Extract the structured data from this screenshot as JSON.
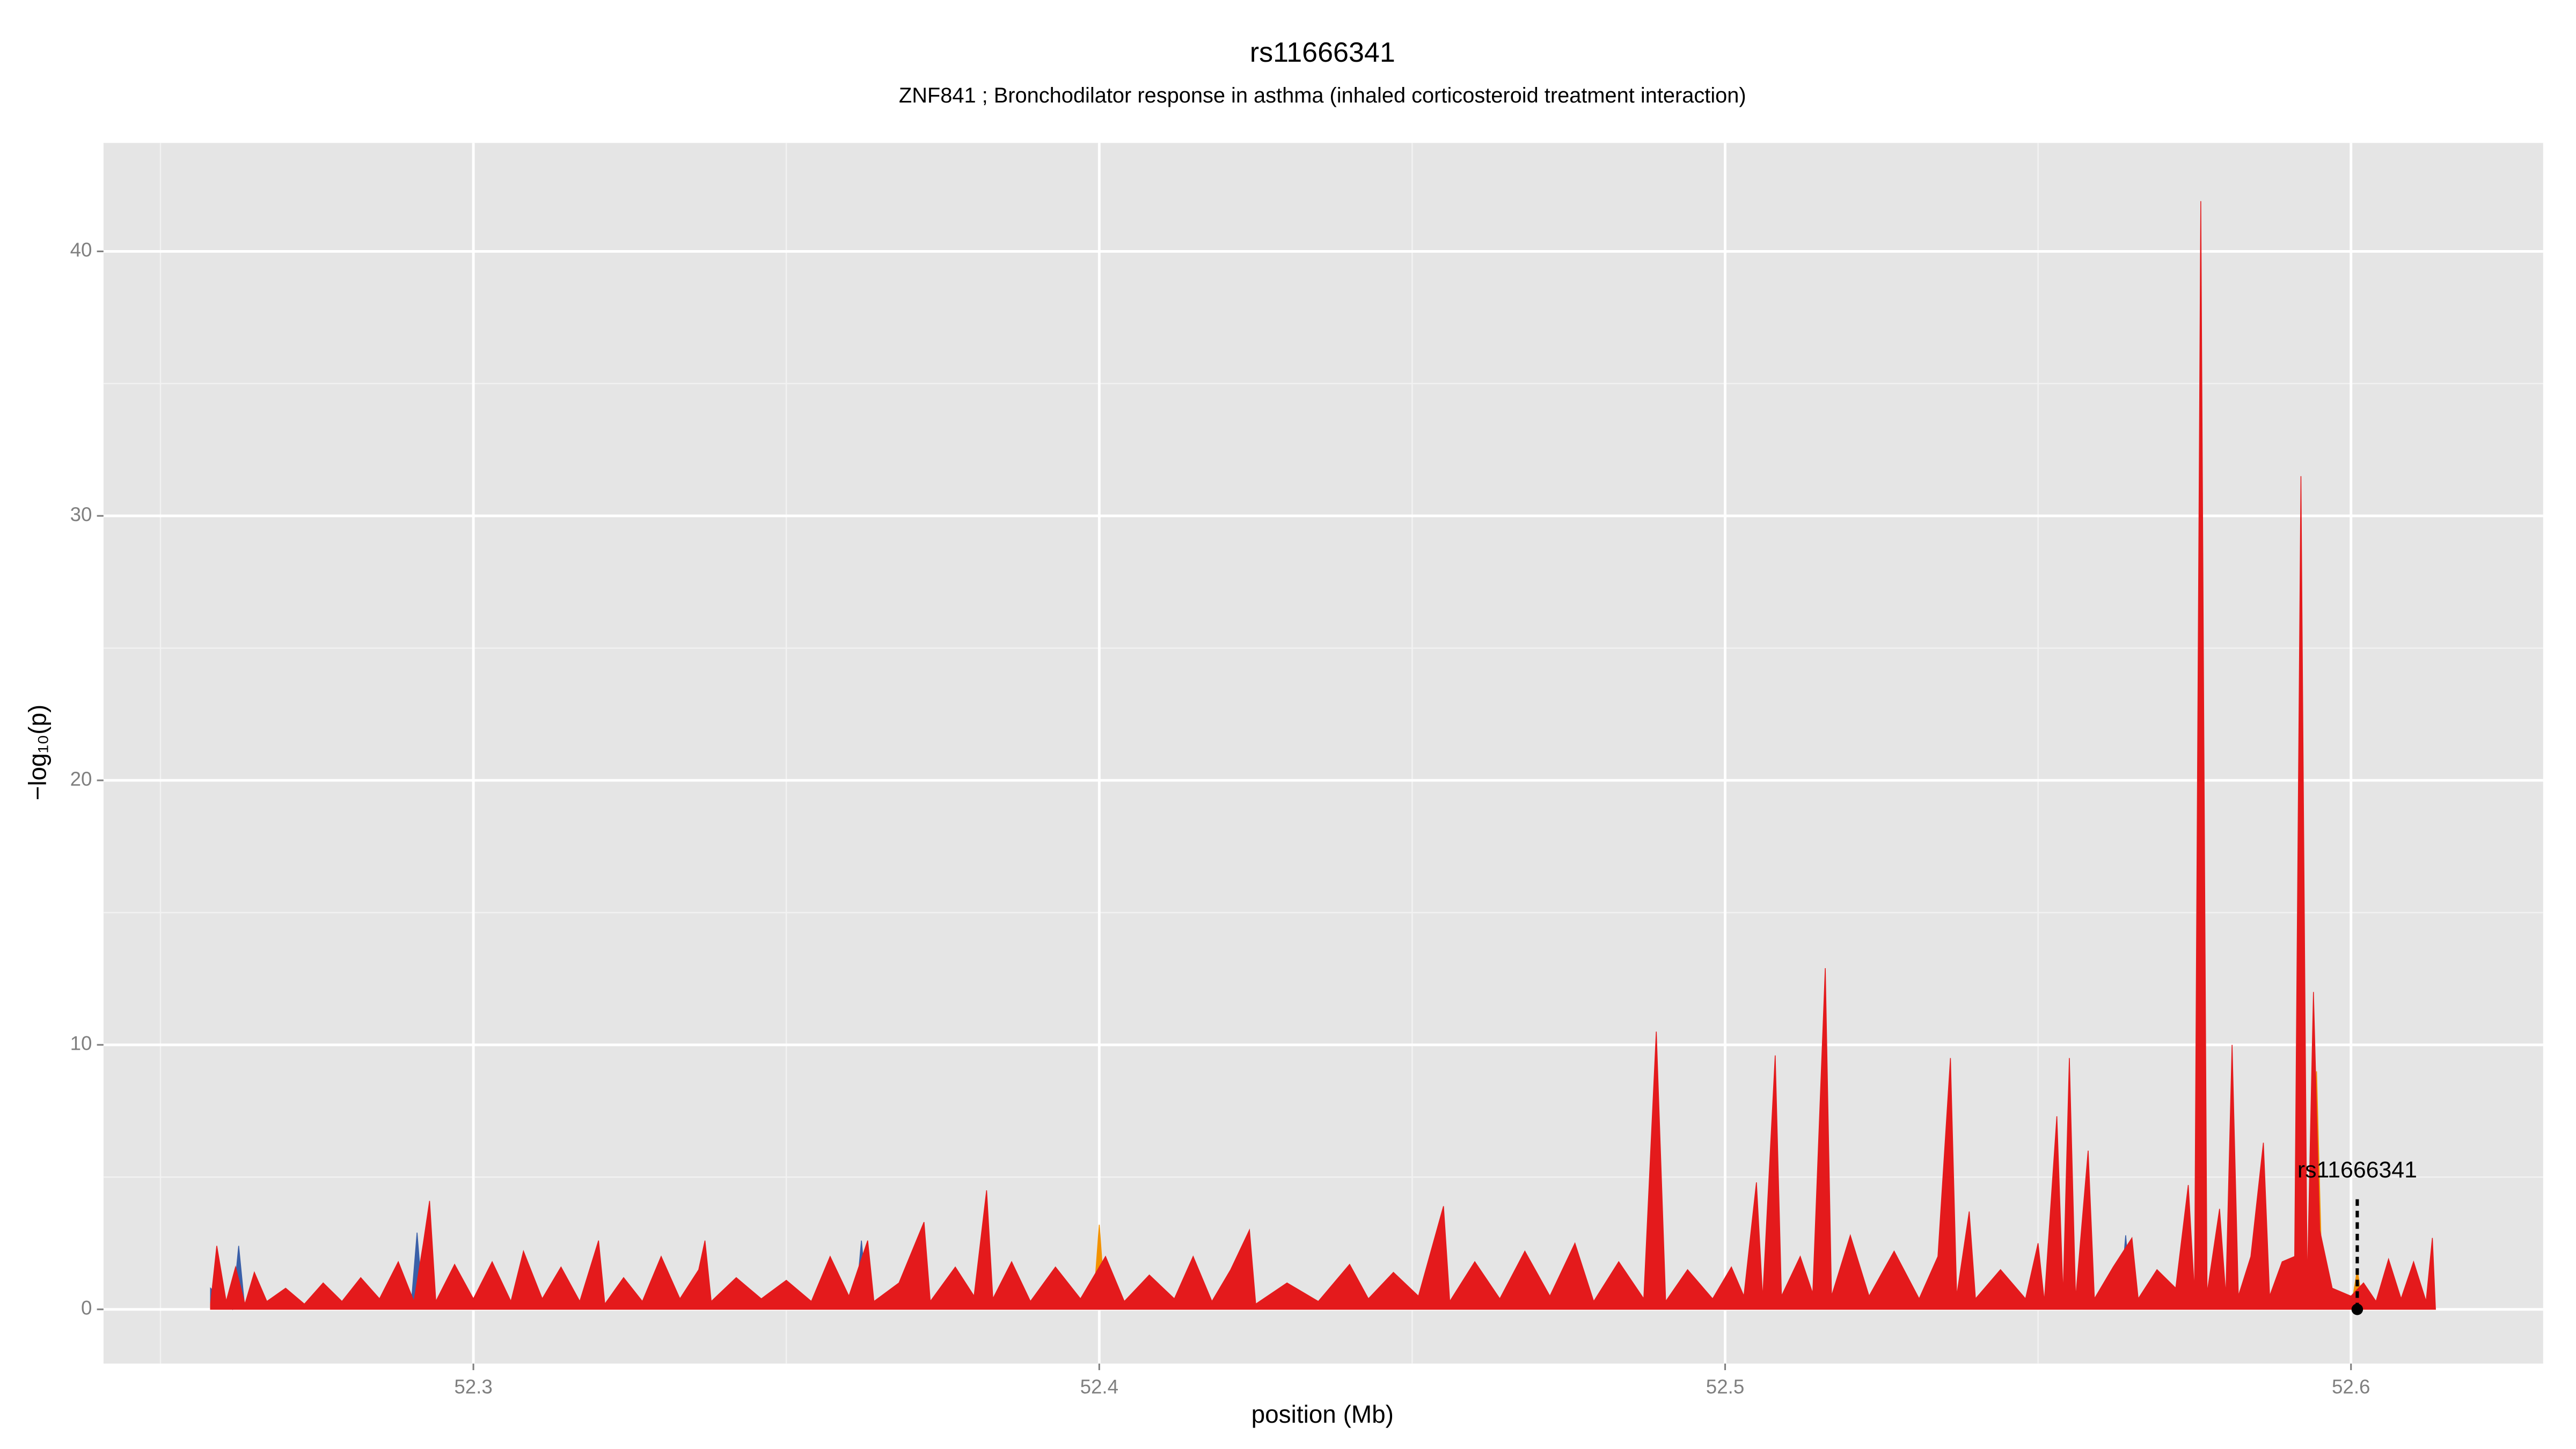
{
  "chart_data": {
    "type": "area",
    "title": "rs11666341",
    "subtitle": "ZNF841 ; Bronchodilator response in asthma (inhaled corticosteroid treatment interaction)",
    "x_label": "position (Mb)",
    "y_label": "−log₁₀(p)",
    "xlim": [
      52.2409,
      52.6307
    ],
    "xticks": [
      52.3,
      52.4,
      52.5,
      52.6
    ],
    "x_minor_ticks": [
      52.25,
      52.35,
      52.45,
      52.55
    ],
    "ylim": [
      -2.05,
      44.1
    ],
    "yticks": [
      0,
      10,
      20,
      30,
      40
    ],
    "y_minor_ticks": [
      5,
      15,
      25,
      35
    ],
    "grid": true,
    "background": "#e5e5e5",
    "series": [
      {
        "color": "#3a5fa8",
        "x": [
          52.258,
          52.2615,
          52.2625,
          52.2635,
          52.29,
          52.291,
          52.292,
          52.318,
          52.319,
          52.32,
          52.361,
          52.362,
          52.363,
          52.452,
          52.453,
          52.454,
          52.503,
          52.504,
          52.505,
          52.563,
          52.564,
          52.565,
          52.573,
          52.574,
          52.575
        ],
        "values": [
          0.8,
          0,
          2.4,
          0,
          0,
          2.9,
          0,
          0,
          1.3,
          0,
          0,
          2.6,
          0,
          0,
          1.6,
          0,
          0,
          1.2,
          0,
          0,
          2.8,
          0,
          0,
          2.0,
          0
        ]
      },
      {
        "color": "#f39200",
        "x": [
          52.381,
          52.382,
          52.383,
          52.399,
          52.4,
          52.401,
          52.5935,
          52.5945,
          52.5955,
          52.6,
          52.601,
          52.602
        ],
        "values": [
          0,
          3.5,
          0,
          0,
          3.2,
          0,
          0,
          9.0,
          0,
          0,
          1.5,
          0
        ]
      },
      {
        "color": "#e41a1c",
        "x": [
          52.258,
          52.259,
          52.2605,
          52.262,
          52.2635,
          52.265,
          52.267,
          52.27,
          52.273,
          52.276,
          52.279,
          52.282,
          52.285,
          52.288,
          52.2905,
          52.292,
          52.293,
          52.294,
          52.297,
          52.3,
          52.303,
          52.306,
          52.308,
          52.311,
          52.314,
          52.317,
          52.32,
          52.321,
          52.324,
          52.327,
          52.33,
          52.333,
          52.336,
          52.337,
          52.338,
          52.342,
          52.346,
          52.35,
          52.354,
          52.357,
          52.36,
          52.363,
          52.364,
          52.368,
          52.372,
          52.373,
          52.377,
          52.38,
          52.382,
          52.383,
          52.386,
          52.389,
          52.393,
          52.397,
          52.401,
          52.404,
          52.408,
          52.412,
          52.415,
          52.418,
          52.421,
          52.424,
          52.425,
          52.43,
          52.435,
          52.44,
          52.443,
          52.447,
          52.451,
          52.455,
          52.456,
          52.46,
          52.464,
          52.468,
          52.472,
          52.476,
          52.479,
          52.483,
          52.487,
          52.489,
          52.4905,
          52.494,
          52.498,
          52.501,
          52.503,
          52.505,
          52.506,
          52.508,
          52.509,
          52.512,
          52.514,
          52.516,
          52.517,
          52.52,
          52.523,
          52.527,
          52.531,
          52.534,
          52.536,
          52.537,
          52.539,
          52.54,
          52.544,
          52.548,
          52.55,
          52.551,
          52.553,
          52.554,
          52.555,
          52.556,
          52.558,
          52.559,
          52.562,
          52.565,
          52.566,
          52.569,
          52.572,
          52.574,
          52.575,
          52.576,
          52.577,
          52.579,
          52.58,
          52.581,
          52.582,
          52.584,
          52.586,
          52.587,
          52.589,
          52.591,
          52.592,
          52.593,
          52.594,
          52.595,
          52.597,
          52.6,
          52.602,
          52.604,
          52.606,
          52.608,
          52.61,
          52.612,
          52.613,
          52.6135
        ],
        "values": [
          0.2,
          2.4,
          0.3,
          1.6,
          0.2,
          1.4,
          0.3,
          0.8,
          0.2,
          1.0,
          0.3,
          1.2,
          0.4,
          1.8,
          0.3,
          2.5,
          4.1,
          0.3,
          1.7,
          0.4,
          1.8,
          0.3,
          2.2,
          0.4,
          1.6,
          0.3,
          2.6,
          0.2,
          1.2,
          0.3,
          2.0,
          0.4,
          1.5,
          2.6,
          0.3,
          1.2,
          0.4,
          1.1,
          0.3,
          2.0,
          0.5,
          2.6,
          0.3,
          1.0,
          3.3,
          0.3,
          1.6,
          0.5,
          4.5,
          0.4,
          1.8,
          0.3,
          1.6,
          0.4,
          2.0,
          0.3,
          1.3,
          0.4,
          2.0,
          0.3,
          1.5,
          3.0,
          0.2,
          1.0,
          0.3,
          1.7,
          0.4,
          1.4,
          0.5,
          3.9,
          0.3,
          1.8,
          0.4,
          2.2,
          0.5,
          2.5,
          0.3,
          1.8,
          0.4,
          10.5,
          0.3,
          1.5,
          0.4,
          1.6,
          0.5,
          4.8,
          0.4,
          9.6,
          0.5,
          2.0,
          0.6,
          12.9,
          0.5,
          2.8,
          0.5,
          2.2,
          0.4,
          2.0,
          9.5,
          0.5,
          3.7,
          0.4,
          1.5,
          0.4,
          2.5,
          0.3,
          7.3,
          0.5,
          9.5,
          0.4,
          6.0,
          0.4,
          1.6,
          2.7,
          0.4,
          1.5,
          0.8,
          4.7,
          0.6,
          41.9,
          0.6,
          3.8,
          0.5,
          10.0,
          0.5,
          2.0,
          6.3,
          0.5,
          1.8,
          2.0,
          31.5,
          0.8,
          12.0,
          3.0,
          0.8,
          0.5,
          1.0,
          0.3,
          1.9,
          0.4,
          1.8,
          0.3,
          2.7,
          0
        ]
      }
    ],
    "annotation": {
      "label": "rs11666341",
      "x": 52.601,
      "value": 0
    }
  }
}
